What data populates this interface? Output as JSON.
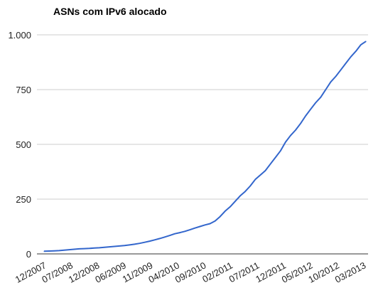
{
  "chart_data": {
    "type": "line",
    "title": "ASNs com IPv6 alocado",
    "xlabel": "",
    "ylabel": "",
    "ylim": [
      0,
      1000
    ],
    "grid": true,
    "legend": "none",
    "y_ticks": [
      {
        "value": 0,
        "label": "0"
      },
      {
        "value": 250,
        "label": "250"
      },
      {
        "value": 500,
        "label": "500"
      },
      {
        "value": 750,
        "label": "750"
      },
      {
        "value": 1000,
        "label": "1.000"
      }
    ],
    "x_tick_labels": [
      "12/2007",
      "07/2008",
      "12/2008",
      "06/2009",
      "11/2009",
      "04/2010",
      "09/2010",
      "02/2011",
      "07/2011",
      "12/2011",
      "05/2012",
      "10/2012",
      "03/2013"
    ],
    "series": [
      {
        "color": "#3366cc",
        "x": [
          "12/2007",
          "01/2008",
          "02/2008",
          "03/2008",
          "04/2008",
          "05/2008",
          "06/2008",
          "07/2008",
          "08/2008",
          "09/2008",
          "10/2008",
          "11/2008",
          "12/2008",
          "01/2009",
          "02/2009",
          "03/2009",
          "04/2009",
          "05/2009",
          "06/2009",
          "07/2009",
          "08/2009",
          "09/2009",
          "10/2009",
          "11/2009",
          "12/2009",
          "01/2010",
          "02/2010",
          "03/2010",
          "04/2010",
          "05/2010",
          "06/2010",
          "07/2010",
          "08/2010",
          "09/2010",
          "10/2010",
          "11/2010",
          "12/2010",
          "01/2011",
          "02/2011",
          "03/2011",
          "04/2011",
          "05/2011",
          "06/2011",
          "07/2011",
          "08/2011",
          "09/2011",
          "10/2011",
          "11/2011",
          "12/2011",
          "01/2012",
          "02/2012",
          "03/2012",
          "04/2012",
          "05/2012",
          "06/2012",
          "07/2012",
          "08/2012",
          "09/2012",
          "10/2012",
          "11/2012",
          "12/2012",
          "01/2013",
          "02/2013",
          "03/2013",
          "04/2013"
        ],
        "values": [
          12,
          13,
          14,
          15,
          17,
          19,
          21,
          23,
          24,
          25,
          27,
          28,
          30,
          32,
          34,
          36,
          38,
          41,
          44,
          48,
          53,
          58,
          64,
          70,
          77,
          84,
          92,
          97,
          103,
          110,
          118,
          125,
          132,
          138,
          150,
          170,
          195,
          215,
          240,
          265,
          285,
          310,
          340,
          360,
          380,
          410,
          440,
          470,
          510,
          540,
          565,
          595,
          630,
          660,
          690,
          715,
          750,
          785,
          810,
          840,
          870,
          900,
          925,
          955,
          970
        ]
      }
    ]
  }
}
